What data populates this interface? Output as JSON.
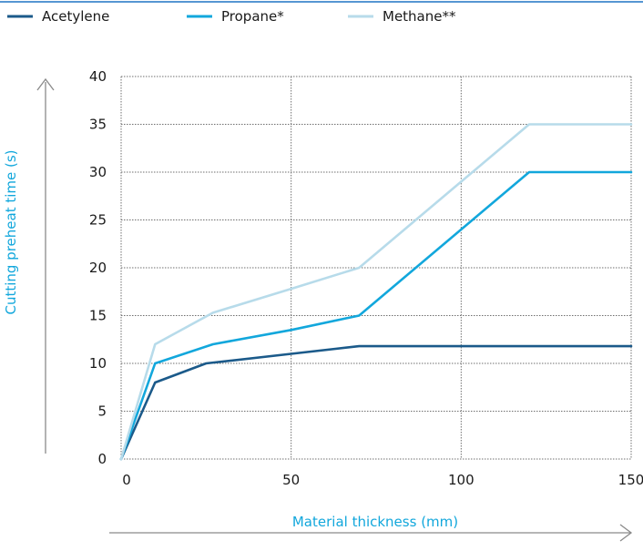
{
  "chart_data": {
    "type": "line",
    "title": "",
    "xlabel": "Material thickness (mm)",
    "ylabel": "Cutting preheat time (s)",
    "xlim": [
      0,
      150
    ],
    "ylim": [
      0,
      40
    ],
    "x_ticks": [
      0,
      50,
      100,
      150
    ],
    "y_ticks": [
      0,
      5,
      10,
      15,
      20,
      25,
      30,
      35,
      40
    ],
    "grid": true,
    "grid_style": "dotted",
    "legend_position": "top",
    "series": [
      {
        "name": "Acetylene",
        "color": "#1b5a8a",
        "points": [
          [
            0,
            0
          ],
          [
            10,
            8
          ],
          [
            25,
            10
          ],
          [
            50,
            11
          ],
          [
            70,
            11.8
          ],
          [
            100,
            11.8
          ],
          [
            150,
            11.8
          ]
        ]
      },
      {
        "name": "Propane*",
        "color": "#12a7dc",
        "points": [
          [
            0,
            0
          ],
          [
            10,
            10
          ],
          [
            27,
            12
          ],
          [
            50,
            13.5
          ],
          [
            70,
            15
          ],
          [
            100,
            24
          ],
          [
            120,
            30
          ],
          [
            150,
            30
          ]
        ]
      },
      {
        "name": "Methane**",
        "color": "#b7dbea",
        "points": [
          [
            0,
            0
          ],
          [
            10,
            12
          ],
          [
            27,
            15.3
          ],
          [
            50,
            17.8
          ],
          [
            70,
            20
          ],
          [
            100,
            29
          ],
          [
            120,
            35
          ],
          [
            150,
            35
          ]
        ]
      }
    ]
  }
}
